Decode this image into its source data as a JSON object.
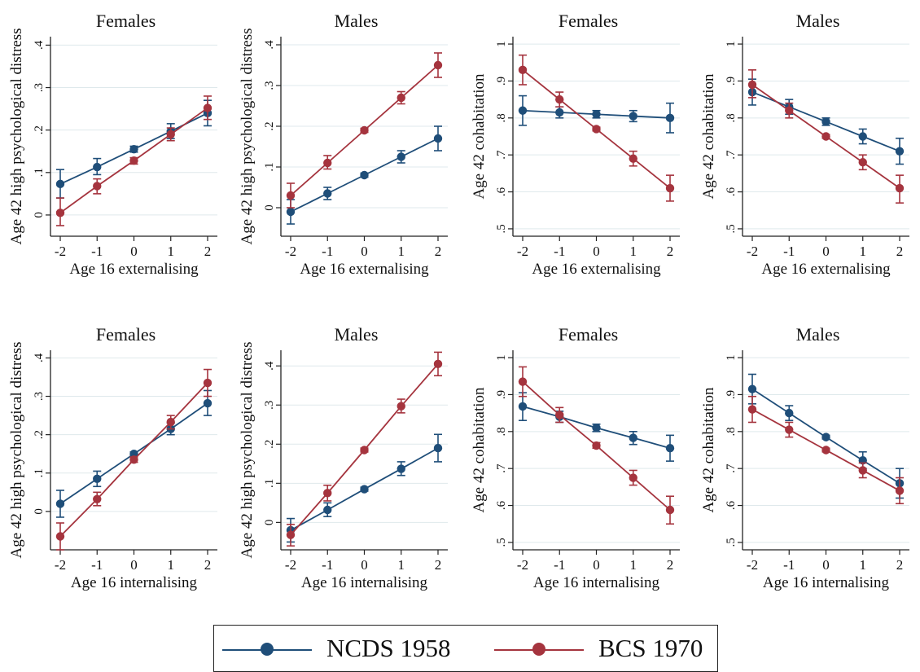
{
  "colors": {
    "ncds": "#1f4e79",
    "bcs": "#a5343e",
    "axis": "#222222",
    "grid": "#dfe9ec"
  },
  "legend": {
    "ncds_label": "NCDS 1958",
    "bcs_label": "BCS 1970"
  },
  "chart_data": [
    {
      "type": "line",
      "title": "Females",
      "ylabel": "Age 42 high psychological distress",
      "xlabel": "Age 16 externalising",
      "x": [
        -2,
        -1,
        0,
        1,
        2
      ],
      "ylim": [
        -0.05,
        0.42
      ],
      "yticks": [
        0,
        0.1,
        0.2,
        0.3,
        0.4
      ],
      "ytick_labels": [
        "0",
        ".1",
        ".2",
        ".3",
        ".4"
      ],
      "series": [
        {
          "name": "NCDS 1958",
          "values": [
            0.073,
            0.113,
            0.155,
            0.197,
            0.24
          ],
          "ci_low": [
            0.04,
            0.095,
            0.148,
            0.18,
            0.21
          ],
          "ci_high": [
            0.107,
            0.133,
            0.162,
            0.215,
            0.27
          ]
        },
        {
          "name": "BCS 1970",
          "values": [
            0.005,
            0.068,
            0.128,
            0.19,
            0.252
          ],
          "ci_low": [
            -0.025,
            0.05,
            0.12,
            0.175,
            0.225
          ],
          "ci_high": [
            0.04,
            0.085,
            0.135,
            0.205,
            0.28
          ]
        }
      ]
    },
    {
      "type": "line",
      "title": "Males",
      "ylabel": "Age 42 high psychological distress",
      "xlabel": "Age 16 externalising",
      "x": [
        -2,
        -1,
        0,
        1,
        2
      ],
      "ylim": [
        -0.07,
        0.42
      ],
      "yticks": [
        0,
        0.1,
        0.2,
        0.3,
        0.4
      ],
      "ytick_labels": [
        "0",
        ".1",
        ".2",
        ".3",
        ".4"
      ],
      "series": [
        {
          "name": "NCDS 1958",
          "values": [
            -0.01,
            0.035,
            0.08,
            0.125,
            0.17
          ],
          "ci_low": [
            -0.04,
            0.02,
            0.075,
            0.11,
            0.14
          ],
          "ci_high": [
            0.02,
            0.05,
            0.085,
            0.14,
            0.2
          ]
        },
        {
          "name": "BCS 1970",
          "values": [
            0.03,
            0.11,
            0.19,
            0.27,
            0.35
          ],
          "ci_low": [
            0.0,
            0.095,
            0.185,
            0.255,
            0.32
          ],
          "ci_high": [
            0.06,
            0.128,
            0.195,
            0.285,
            0.38
          ]
        }
      ]
    },
    {
      "type": "line",
      "title": "Females",
      "ylabel": "Age 42 cohabitation",
      "xlabel": "Age 16 externalising",
      "x": [
        -2,
        -1,
        0,
        1,
        2
      ],
      "ylim": [
        0.48,
        1.02
      ],
      "yticks": [
        0.5,
        0.6,
        0.7,
        0.8,
        0.9,
        1.0
      ],
      "ytick_labels": [
        ".5",
        ".6",
        ".7",
        ".8",
        ".9",
        "1"
      ],
      "series": [
        {
          "name": "NCDS 1958",
          "values": [
            0.82,
            0.815,
            0.81,
            0.805,
            0.8
          ],
          "ci_low": [
            0.78,
            0.8,
            0.8,
            0.79,
            0.76
          ],
          "ci_high": [
            0.86,
            0.83,
            0.82,
            0.82,
            0.84
          ]
        },
        {
          "name": "BCS 1970",
          "values": [
            0.93,
            0.85,
            0.77,
            0.69,
            0.61
          ],
          "ci_low": [
            0.89,
            0.83,
            0.765,
            0.67,
            0.575
          ],
          "ci_high": [
            0.97,
            0.87,
            0.775,
            0.71,
            0.645
          ]
        }
      ]
    },
    {
      "type": "line",
      "title": "Males",
      "ylabel": "Age 42 cohabitation",
      "xlabel": "Age 16 externalising",
      "x": [
        -2,
        -1,
        0,
        1,
        2
      ],
      "ylim": [
        0.48,
        1.02
      ],
      "yticks": [
        0.5,
        0.6,
        0.7,
        0.8,
        0.9,
        1.0
      ],
      "ytick_labels": [
        ".5",
        ".6",
        ".7",
        ".8",
        ".9",
        "1"
      ],
      "series": [
        {
          "name": "NCDS 1958",
          "values": [
            0.87,
            0.83,
            0.79,
            0.75,
            0.71
          ],
          "ci_low": [
            0.835,
            0.81,
            0.78,
            0.73,
            0.675
          ],
          "ci_high": [
            0.905,
            0.85,
            0.8,
            0.77,
            0.745
          ]
        },
        {
          "name": "BCS 1970",
          "values": [
            0.89,
            0.82,
            0.75,
            0.68,
            0.61
          ],
          "ci_low": [
            0.855,
            0.8,
            0.745,
            0.66,
            0.57
          ],
          "ci_high": [
            0.93,
            0.84,
            0.755,
            0.7,
            0.645
          ]
        }
      ]
    },
    {
      "type": "line",
      "title": "Females",
      "ylabel": "Age 42 high psychological distress",
      "xlabel": "Age 16 internalising",
      "x": [
        -2,
        -1,
        0,
        1,
        2
      ],
      "ylim": [
        -0.1,
        0.42
      ],
      "yticks": [
        0,
        0.1,
        0.2,
        0.3,
        0.4
      ],
      "ytick_labels": [
        "0",
        ".1",
        ".2",
        ".3",
        ".4"
      ],
      "series": [
        {
          "name": "NCDS 1958",
          "values": [
            0.02,
            0.085,
            0.15,
            0.215,
            0.282
          ],
          "ci_low": [
            -0.015,
            0.065,
            0.145,
            0.2,
            0.25
          ],
          "ci_high": [
            0.055,
            0.105,
            0.155,
            0.23,
            0.315
          ]
        },
        {
          "name": "BCS 1970",
          "values": [
            -0.065,
            0.032,
            0.135,
            0.233,
            0.335
          ],
          "ci_low": [
            -0.1,
            0.015,
            0.128,
            0.215,
            0.3
          ],
          "ci_high": [
            -0.03,
            0.05,
            0.142,
            0.25,
            0.37
          ]
        }
      ]
    },
    {
      "type": "line",
      "title": "Males",
      "ylabel": "Age 42 high psychological distress",
      "xlabel": "Age 16 internalising",
      "x": [
        -2,
        -1,
        0,
        1,
        2
      ],
      "ylim": [
        -0.07,
        0.44
      ],
      "yticks": [
        0,
        0.1,
        0.2,
        0.3,
        0.4
      ],
      "ytick_labels": [
        "0",
        ".1",
        ".2",
        ".3",
        ".4"
      ],
      "series": [
        {
          "name": "NCDS 1958",
          "values": [
            -0.02,
            0.032,
            0.085,
            0.137,
            0.19
          ],
          "ci_low": [
            -0.05,
            0.015,
            0.08,
            0.12,
            0.155
          ],
          "ci_high": [
            0.01,
            0.05,
            0.09,
            0.155,
            0.225
          ]
        },
        {
          "name": "BCS 1970",
          "values": [
            -0.032,
            0.075,
            0.185,
            0.297,
            0.405
          ],
          "ci_low": [
            -0.06,
            0.055,
            0.18,
            0.28,
            0.375
          ],
          "ci_high": [
            -0.005,
            0.095,
            0.19,
            0.315,
            0.435
          ]
        }
      ]
    },
    {
      "type": "line",
      "title": "Females",
      "ylabel": "Age 42 cohabitation",
      "xlabel": "Age 16 internalising",
      "x": [
        -2,
        -1,
        0,
        1,
        2
      ],
      "ylim": [
        0.48,
        1.02
      ],
      "yticks": [
        0.5,
        0.6,
        0.7,
        0.8,
        0.9,
        1.0
      ],
      "ytick_labels": [
        ".5",
        ".6",
        ".7",
        ".8",
        ".9",
        "1"
      ],
      "series": [
        {
          "name": "NCDS 1958",
          "values": [
            0.868,
            0.84,
            0.81,
            0.783,
            0.755
          ],
          "ci_low": [
            0.83,
            0.825,
            0.8,
            0.765,
            0.72
          ],
          "ci_high": [
            0.905,
            0.855,
            0.82,
            0.8,
            0.79
          ]
        },
        {
          "name": "BCS 1970",
          "values": [
            0.935,
            0.845,
            0.762,
            0.675,
            0.588
          ],
          "ci_low": [
            0.895,
            0.825,
            0.755,
            0.655,
            0.55
          ],
          "ci_high": [
            0.975,
            0.865,
            0.77,
            0.695,
            0.625
          ]
        }
      ]
    },
    {
      "type": "line",
      "title": "Males",
      "ylabel": "Age 42 cohabitation",
      "xlabel": "Age 16 internalising",
      "x": [
        -2,
        -1,
        0,
        1,
        2
      ],
      "ylim": [
        0.48,
        1.02
      ],
      "yticks": [
        0.5,
        0.6,
        0.7,
        0.8,
        0.9,
        1.0
      ],
      "ytick_labels": [
        ".5",
        ".6",
        ".7",
        ".8",
        ".9",
        "1"
      ],
      "series": [
        {
          "name": "NCDS 1958",
          "values": [
            0.915,
            0.85,
            0.785,
            0.722,
            0.66
          ],
          "ci_low": [
            0.875,
            0.83,
            0.78,
            0.7,
            0.62
          ],
          "ci_high": [
            0.955,
            0.87,
            0.79,
            0.745,
            0.7
          ]
        },
        {
          "name": "BCS 1970",
          "values": [
            0.86,
            0.805,
            0.75,
            0.695,
            0.64
          ],
          "ci_low": [
            0.825,
            0.785,
            0.745,
            0.675,
            0.605
          ],
          "ci_high": [
            0.895,
            0.825,
            0.755,
            0.715,
            0.675
          ]
        }
      ]
    }
  ]
}
